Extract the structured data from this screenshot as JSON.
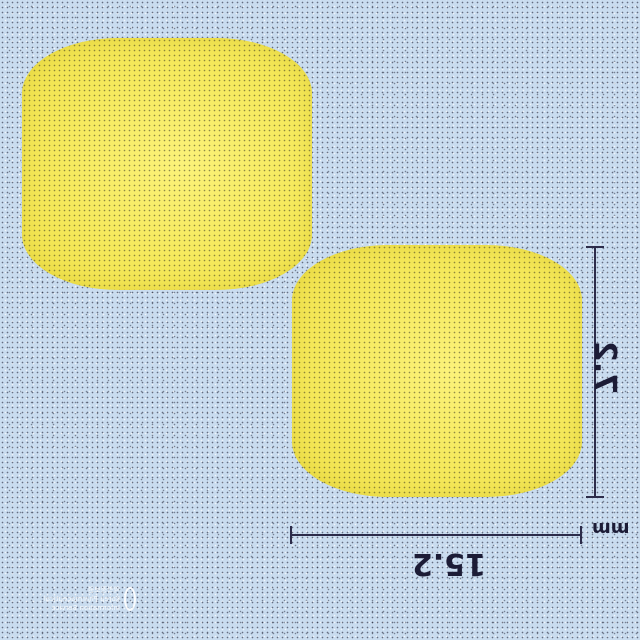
{
  "scene": {
    "background_color": "#c9dcef",
    "tablet_color": "#f5e95c",
    "dimension_color": "#2c2c4a"
  },
  "dimensions": {
    "height_value": "7.2",
    "width_value": "15.2",
    "unit": "mm"
  },
  "watermark": {
    "icon": "logo-icon",
    "line1": "약학정보원",
    "line2": "Korea Pharmaceutical Information Service"
  }
}
